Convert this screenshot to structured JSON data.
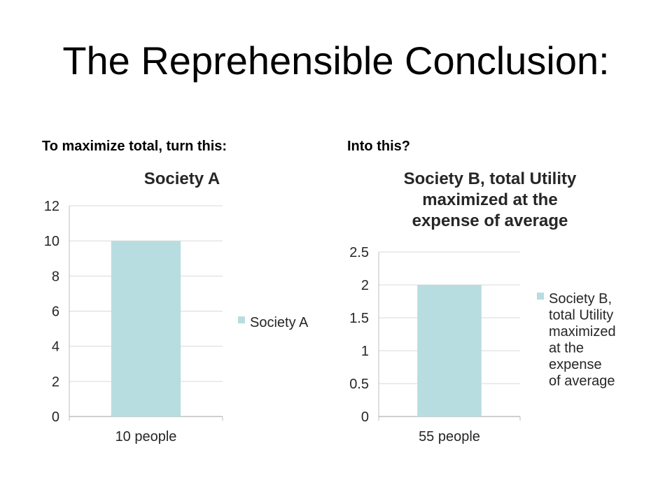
{
  "slide": {
    "title": "The Reprehensible Conclusion:",
    "left_caption": "To maximize total, turn this:",
    "right_caption": "Into this?"
  },
  "colors": {
    "bar": "#b7dde1",
    "grid": "#d9d9d9",
    "axis": "#bfbfbf"
  },
  "chart_data": [
    {
      "type": "bar",
      "title": "Society A",
      "categories": [
        "10 people"
      ],
      "series": [
        {
          "name": "Society A",
          "values": [
            10
          ]
        }
      ],
      "ylim": [
        0,
        12
      ],
      "yticks": [
        0,
        2,
        4,
        6,
        8,
        10,
        12
      ],
      "grid": true,
      "legend": "right"
    },
    {
      "type": "bar",
      "title": "Society B, total Utility maximized at the expense of average",
      "title_lines": [
        "Society B, total Utility",
        "maximized at the",
        "expense of average"
      ],
      "categories": [
        "55 people"
      ],
      "series": [
        {
          "name": "Society B, total Utility maximized at the expense of average",
          "name_lines": [
            "Society B,",
            "total Utility",
            "maximized",
            "at the",
            "expense",
            "of average"
          ],
          "values": [
            2
          ]
        }
      ],
      "ylim": [
        0,
        2.5
      ],
      "yticks": [
        0,
        0.5,
        1,
        1.5,
        2,
        2.5
      ],
      "grid": true,
      "legend": "right"
    }
  ]
}
